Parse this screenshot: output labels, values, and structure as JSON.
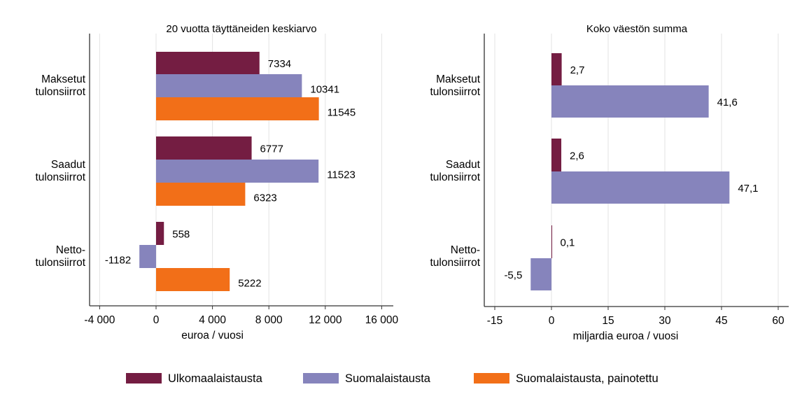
{
  "chart_data": [
    {
      "type": "bar",
      "orientation": "horizontal",
      "title": "20 vuotta täyttäneiden keskiarvo",
      "xlabel": "euroa / vuosi",
      "categories": [
        "Maksetut\ntulonsiirrot",
        "Saadut\ntulonsiirrot",
        "Netto-\ntulonsiirrot"
      ],
      "xlim": [
        -4700,
        16800
      ],
      "xticks": [
        -4000,
        0,
        4000,
        8000,
        12000,
        16000
      ],
      "xtick_labels": [
        "-4 000",
        "0",
        "4 000",
        "8 000",
        "12 000",
        "16 000"
      ],
      "grid": true,
      "series": [
        {
          "name": "Ulkomaalaistausta",
          "values": [
            7334,
            6777,
            558
          ],
          "labels": [
            "7334",
            "6777",
            "558"
          ]
        },
        {
          "name": "Suomalaistausta",
          "values": [
            10341,
            11523,
            -1182
          ],
          "labels": [
            "10341",
            "11523",
            "-1182"
          ]
        },
        {
          "name": "Suomalaistausta, painotettu",
          "values": [
            11545,
            6323,
            5222
          ],
          "labels": [
            "11545",
            "6323",
            "5222"
          ]
        }
      ]
    },
    {
      "type": "bar",
      "orientation": "horizontal",
      "title": "Koko väestön summa",
      "xlabel": "miljardia euroa / vuosi",
      "categories": [
        "Maksetut\ntulonsiirrot",
        "Saadut\ntulonsiirrot",
        "Netto-\ntulonsiirrot"
      ],
      "xlim": [
        -18,
        63
      ],
      "xticks": [
        -15,
        0,
        15,
        30,
        45,
        60
      ],
      "xtick_labels": [
        "-15",
        "0",
        "15",
        "30",
        "45",
        "60"
      ],
      "grid": true,
      "series": [
        {
          "name": "Ulkomaalaistausta",
          "values": [
            2.7,
            2.6,
            0.1
          ],
          "labels": [
            "2,7",
            "2,6",
            "0,1"
          ]
        },
        {
          "name": "Suomalaistausta",
          "values": [
            41.6,
            47.1,
            -5.5
          ],
          "labels": [
            "41,6",
            "47,1",
            "-5,5"
          ]
        }
      ]
    }
  ],
  "legend": {
    "placement": "bottom",
    "items": [
      {
        "label": "Ulkomaalaistausta",
        "color": "#741d42"
      },
      {
        "label": "Suomalaistausta",
        "color": "#8684bc"
      },
      {
        "label": "Suomalaistausta, painotettu",
        "color": "#f26f18"
      }
    ]
  },
  "colors": {
    "series": [
      "#741d42",
      "#8684bc",
      "#f26f18"
    ],
    "grid": "#e3e3e3",
    "axis": "#333333"
  }
}
